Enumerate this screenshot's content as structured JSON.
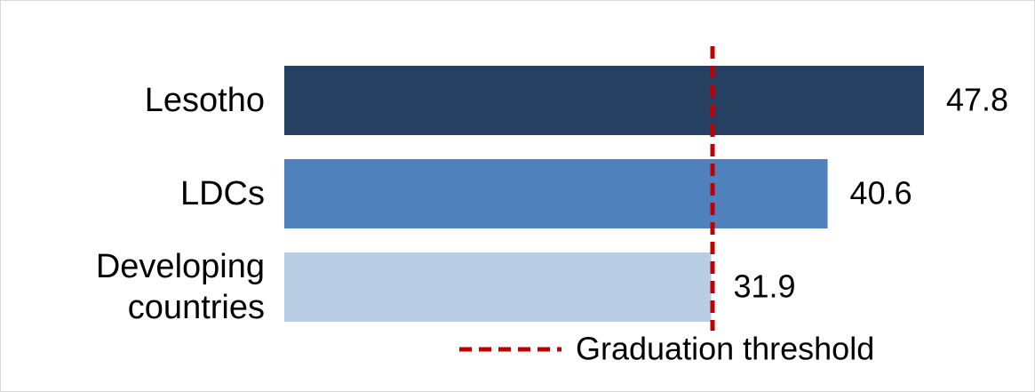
{
  "chart_data": {
    "type": "bar",
    "orientation": "horizontal",
    "categories": [
      "Lesotho",
      "LDCs",
      "Developing countries"
    ],
    "values": [
      47.8,
      40.6,
      31.9
    ],
    "colors": [
      "#264061",
      "#4f81bd",
      "#b9cde5"
    ],
    "threshold": {
      "name": "Graduation threshold",
      "value": 32,
      "color": "#c00000"
    }
  }
}
